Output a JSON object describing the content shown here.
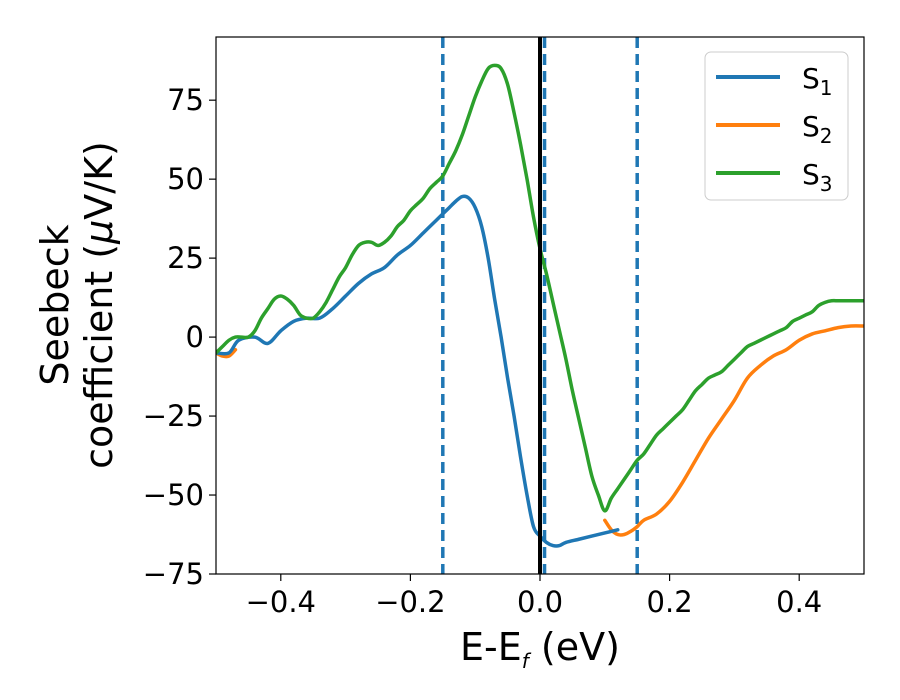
{
  "chart_data": {
    "type": "line",
    "xlabel": "E-E",
    "xlabel_subscript": "f",
    "xlabel_suffix": " (eV)",
    "ylabel_line1": "Seebeck",
    "ylabel_line2_pre": "coefficient  (",
    "ylabel_mu": "μ",
    "ylabel_line2_post": "V/K)",
    "xlim": [
      -0.5,
      0.5
    ],
    "ylim": [
      -75,
      95
    ],
    "xticks": [
      -0.4,
      -0.2,
      0.0,
      0.2,
      0.4
    ],
    "xtick_labels": [
      "−0.4",
      "−0.2",
      "0.0",
      "0.2",
      "0.4"
    ],
    "yticks": [
      -75,
      -50,
      -25,
      0,
      25,
      50,
      75
    ],
    "ytick_labels": [
      "−75",
      "−50",
      "−25",
      "0",
      "25",
      "50",
      "75"
    ],
    "grid": false,
    "legend_position": "top-right",
    "vlines_dashed": [
      -0.15,
      0.007,
      0.15
    ],
    "vline_solid": 0.0,
    "colors": {
      "S1": "#1f77b4",
      "S2": "#ff7f0e",
      "S3": "#2ca02c",
      "vline": "#000000"
    },
    "series": [
      {
        "name": "S",
        "subscript": "1",
        "x": [
          -0.5,
          -0.48,
          -0.465,
          -0.44,
          -0.42,
          -0.4,
          -0.38,
          -0.36,
          -0.34,
          -0.32,
          -0.3,
          -0.28,
          -0.26,
          -0.24,
          -0.22,
          -0.2,
          -0.18,
          -0.16,
          -0.15,
          -0.14,
          -0.13,
          -0.12,
          -0.11,
          -0.1,
          -0.09,
          -0.08,
          -0.07,
          -0.06,
          -0.05,
          -0.04,
          -0.03,
          -0.02,
          -0.01,
          0.0,
          0.01,
          0.02,
          0.03,
          0.04,
          0.06,
          0.08,
          0.1,
          0.12
        ],
        "y": [
          -5,
          -5,
          -1,
          0,
          -2,
          2,
          5,
          6,
          6,
          9,
          13,
          17,
          20,
          22,
          26,
          29,
          33,
          37,
          39,
          41,
          43,
          44.5,
          44,
          41,
          35,
          25,
          12,
          0,
          -13,
          -25,
          -38,
          -50,
          -60,
          -63,
          -65,
          -66,
          -66,
          -65,
          -64,
          -63,
          -62,
          -61
        ]
      },
      {
        "name": "S",
        "subscript": "2",
        "x": [
          -0.5,
          -0.49,
          -0.48,
          -0.47,
          0.1,
          0.11,
          0.12,
          0.13,
          0.14,
          0.15,
          0.16,
          0.18,
          0.2,
          0.22,
          0.24,
          0.26,
          0.28,
          0.3,
          0.32,
          0.34,
          0.36,
          0.38,
          0.4,
          0.42,
          0.44,
          0.46,
          0.48,
          0.5
        ],
        "y": [
          -5,
          -6,
          -6,
          -4,
          -58,
          -61,
          -62.5,
          -62.5,
          -61.5,
          -60,
          -58,
          -56,
          -52,
          -46,
          -39,
          -32,
          -26,
          -20,
          -13,
          -9,
          -6,
          -4,
          -1,
          1,
          2,
          3,
          3.5,
          3.5
        ]
      },
      {
        "name": "S",
        "subscript": "3",
        "x": [
          -0.5,
          -0.49,
          -0.48,
          -0.47,
          -0.46,
          -0.45,
          -0.44,
          -0.43,
          -0.42,
          -0.41,
          -0.4,
          -0.39,
          -0.38,
          -0.37,
          -0.36,
          -0.35,
          -0.34,
          -0.33,
          -0.32,
          -0.31,
          -0.3,
          -0.29,
          -0.28,
          -0.27,
          -0.26,
          -0.25,
          -0.24,
          -0.23,
          -0.22,
          -0.21,
          -0.2,
          -0.19,
          -0.18,
          -0.17,
          -0.16,
          -0.15,
          -0.14,
          -0.13,
          -0.12,
          -0.11,
          -0.1,
          -0.09,
          -0.08,
          -0.07,
          -0.06,
          -0.05,
          -0.04,
          -0.03,
          -0.02,
          -0.01,
          0.0,
          0.01,
          0.02,
          0.03,
          0.04,
          0.05,
          0.06,
          0.07,
          0.08,
          0.09,
          0.1,
          0.11,
          0.12,
          0.13,
          0.14,
          0.15,
          0.16,
          0.17,
          0.18,
          0.19,
          0.2,
          0.21,
          0.22,
          0.23,
          0.24,
          0.25,
          0.26,
          0.27,
          0.28,
          0.29,
          0.3,
          0.31,
          0.32,
          0.33,
          0.34,
          0.35,
          0.36,
          0.37,
          0.38,
          0.39,
          0.4,
          0.41,
          0.42,
          0.43,
          0.44,
          0.45,
          0.46,
          0.47,
          0.48,
          0.49,
          0.5
        ],
        "y": [
          -5,
          -3,
          -1,
          0,
          0,
          0,
          2,
          6,
          9,
          12,
          13,
          12,
          10,
          7,
          6,
          6,
          8,
          11,
          15,
          19,
          22,
          26,
          29,
          30,
          30,
          29,
          30,
          32,
          35,
          37,
          40,
          42,
          44,
          47,
          49,
          51,
          55,
          59,
          64,
          70,
          76,
          81,
          85,
          86,
          85,
          80,
          71,
          61,
          50,
          38,
          28,
          20,
          11,
          2,
          -7,
          -17,
          -26,
          -35,
          -44,
          -50,
          -55,
          -51,
          -48,
          -45,
          -42,
          -39,
          -37,
          -34,
          -31,
          -29,
          -27,
          -25,
          -23,
          -20,
          -17,
          -15,
          -13,
          -12,
          -11,
          -9,
          -7,
          -5,
          -3,
          -2,
          -1,
          0,
          1,
          2,
          3,
          5,
          6,
          7,
          8,
          10,
          11,
          11.5,
          11.5,
          11.5,
          11.5,
          11.5,
          11.5
        ]
      }
    ]
  }
}
